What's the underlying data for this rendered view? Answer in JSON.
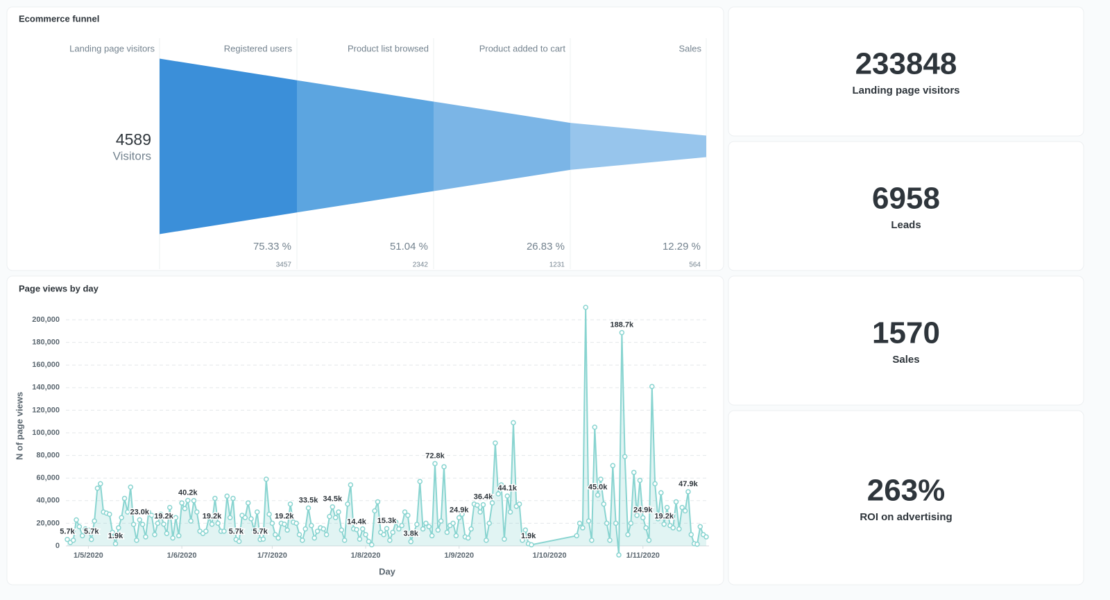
{
  "chart_data": [
    {
      "type": "funnel",
      "title": "Ecommerce funnel",
      "categories": [
        "Landing page visitors",
        "Registered users",
        "Product list browsed",
        "Product added to cart",
        "Sales"
      ],
      "values": [
        4589,
        3457,
        2342,
        1231,
        564
      ],
      "headline_label": "Visitors",
      "percent_labels": [
        "75.33 %",
        "51.04 %",
        "26.83 %",
        "12.29 %"
      ],
      "colors": [
        "#3b8fd9",
        "#5ca5e0",
        "#7bb5e6",
        "#97c5ec"
      ]
    },
    {
      "type": "line",
      "title": "Page views by day",
      "x_label": "Day",
      "y_label": "N of page views",
      "color": "#88d4d0",
      "grid": true,
      "x": [
        "24/4/2020",
        "25/4/2020",
        "26/4/2020",
        "27/4/2020",
        "28/4/2020",
        "29/4/2020",
        "30/4/2020",
        "1/5/2020",
        "2/5/2020",
        "3/5/2020",
        "4/5/2020",
        "5/5/2020",
        "6/5/2020",
        "7/5/2020",
        "8/5/2020",
        "9/5/2020",
        "10/5/2020",
        "11/5/2020",
        "12/5/2020",
        "13/5/2020",
        "14/5/2020",
        "15/5/2020",
        "16/5/2020",
        "17/5/2020",
        "18/5/2020",
        "19/5/2020",
        "20/5/2020",
        "21/5/2020",
        "22/5/2020",
        "23/5/2020",
        "24/5/2020",
        "25/5/2020",
        "26/5/2020",
        "27/5/2020",
        "28/5/2020",
        "29/5/2020",
        "30/5/2020",
        "31/5/2020",
        "1/6/2020",
        "2/6/2020",
        "3/6/2020",
        "4/6/2020",
        "5/6/2020",
        "6/6/2020",
        "7/6/2020",
        "8/6/2020",
        "9/6/2020",
        "10/6/2020",
        "11/6/2020",
        "12/6/2020",
        "13/6/2020",
        "14/6/2020",
        "15/6/2020",
        "16/6/2020",
        "17/6/2020",
        "18/6/2020",
        "19/6/2020",
        "20/6/2020",
        "21/6/2020",
        "22/6/2020",
        "23/6/2020",
        "24/6/2020",
        "25/6/2020",
        "26/6/2020",
        "27/6/2020",
        "28/6/2020",
        "29/6/2020",
        "30/6/2020",
        "1/7/2020",
        "2/7/2020",
        "3/7/2020",
        "4/7/2020",
        "5/7/2020",
        "6/7/2020",
        "7/7/2020",
        "8/7/2020",
        "9/7/2020",
        "10/7/2020",
        "11/7/2020",
        "12/7/2020",
        "13/7/2020",
        "14/7/2020",
        "15/7/2020",
        "16/7/2020",
        "17/7/2020",
        "18/7/2020",
        "19/7/2020",
        "20/7/2020",
        "21/7/2020",
        "22/7/2020",
        "23/7/2020",
        "24/7/2020",
        "25/7/2020",
        "26/7/2020",
        "27/7/2020",
        "28/7/2020",
        "29/7/2020",
        "30/7/2020",
        "31/7/2020",
        "1/8/2020",
        "2/8/2020",
        "3/8/2020",
        "4/8/2020",
        "5/8/2020",
        "6/8/2020",
        "7/8/2020",
        "8/8/2020",
        "9/8/2020",
        "10/8/2020",
        "11/8/2020",
        "12/8/2020",
        "13/8/2020",
        "14/8/2020",
        "15/8/2020",
        "16/8/2020",
        "17/8/2020",
        "18/8/2020",
        "19/8/2020",
        "20/8/2020",
        "21/8/2020",
        "22/8/2020",
        "23/8/2020",
        "24/8/2020",
        "25/8/2020",
        "26/8/2020",
        "27/8/2020",
        "28/8/2020",
        "29/8/2020",
        "30/8/2020",
        "31/8/2020",
        "1/9/2020",
        "2/9/2020",
        "3/9/2020",
        "4/9/2020",
        "5/9/2020",
        "6/9/2020",
        "7/9/2020",
        "8/9/2020",
        "9/9/2020",
        "10/9/2020",
        "11/9/2020",
        "12/9/2020",
        "13/9/2020",
        "14/9/2020",
        "15/9/2020",
        "16/9/2020",
        "17/9/2020",
        "18/9/2020",
        "19/9/2020",
        "20/9/2020",
        "21/9/2020",
        "22/9/2020",
        "23/9/2020",
        "24/9/2020",
        "25/9/2020",
        "10/10/2020",
        "11/10/2020",
        "12/10/2020",
        "13/10/2020",
        "14/10/2020",
        "15/10/2020",
        "16/10/2020",
        "17/10/2020",
        "18/10/2020",
        "19/10/2020",
        "20/10/2020",
        "21/10/2020",
        "22/10/2020",
        "23/10/2020",
        "24/10/2020",
        "25/10/2020",
        "26/10/2020",
        "27/10/2020",
        "28/10/2020",
        "29/10/2020",
        "30/10/2020",
        "31/10/2020",
        "1/11/2020",
        "2/11/2020",
        "3/11/2020",
        "4/11/2020",
        "5/11/2020",
        "6/11/2020",
        "7/11/2020",
        "8/11/2020",
        "9/11/2020",
        "10/11/2020",
        "11/11/2020",
        "12/11/2020",
        "13/11/2020",
        "14/11/2020",
        "15/11/2020",
        "16/11/2020",
        "17/11/2020",
        "18/11/2020",
        "19/11/2020",
        "20/11/2020",
        "21/11/2020",
        "22/11/2020"
      ],
      "values": [
        5700,
        3000,
        5000,
        23000,
        17000,
        9000,
        15000,
        14000,
        5700,
        22000,
        51000,
        55000,
        30000,
        29000,
        28000,
        12000,
        1900,
        16000,
        25000,
        42000,
        30000,
        52000,
        19000,
        5000,
        23000,
        19000,
        8000,
        30000,
        27000,
        10000,
        20000,
        28000,
        19200,
        11000,
        34000,
        7000,
        25000,
        9000,
        38000,
        33000,
        40200,
        22000,
        40000,
        30000,
        13000,
        11000,
        13000,
        25000,
        19200,
        42000,
        20000,
        13000,
        13000,
        44000,
        25000,
        42000,
        5700,
        4000,
        27000,
        25000,
        38000,
        24000,
        14000,
        30000,
        5700,
        6000,
        59000,
        28000,
        20000,
        10000,
        7000,
        20000,
        19200,
        14000,
        37000,
        21000,
        20000,
        10000,
        5000,
        15000,
        33500,
        18000,
        7000,
        13000,
        16000,
        15000,
        10000,
        26000,
        34500,
        25000,
        30000,
        14000,
        5000,
        37000,
        54000,
        15000,
        14400,
        6000,
        15000,
        10000,
        4000,
        1000,
        31000,
        39000,
        12000,
        10000,
        15300,
        5000,
        12000,
        21000,
        15000,
        18000,
        30000,
        27000,
        3800,
        12000,
        19000,
        57000,
        15000,
        20000,
        17000,
        9000,
        72800,
        14000,
        22000,
        70000,
        12000,
        18000,
        20000,
        9000,
        24900,
        28000,
        8000,
        7000,
        15000,
        37000,
        36000,
        30000,
        36400,
        5000,
        20000,
        38000,
        91000,
        46000,
        54000,
        6000,
        44100,
        30000,
        109000,
        35000,
        37000,
        5000,
        14000,
        1900,
        1000,
        9000,
        20000,
        16000,
        211000,
        22000,
        5000,
        105000,
        45000,
        59000,
        37000,
        20000,
        5000,
        71000,
        20000,
        -8000,
        188700,
        79000,
        10000,
        20000,
        65000,
        27000,
        58000,
        24900,
        16000,
        5000,
        141000,
        55000,
        24000,
        47000,
        19200,
        34000,
        18000,
        16000,
        39000,
        15000,
        34000,
        31000,
        47900,
        10000,
        2000,
        1500,
        17000,
        10000,
        8000
      ],
      "value_labels": [
        "5.7k",
        null,
        null,
        null,
        null,
        null,
        null,
        null,
        "5.7k",
        null,
        null,
        null,
        null,
        null,
        null,
        null,
        "1.9k",
        null,
        null,
        null,
        null,
        null,
        null,
        null,
        "23.0k",
        null,
        null,
        null,
        null,
        null,
        null,
        null,
        "19.2k",
        null,
        null,
        null,
        null,
        null,
        null,
        null,
        "40.2k",
        null,
        null,
        null,
        null,
        null,
        null,
        null,
        "19.2k",
        null,
        null,
        null,
        null,
        null,
        null,
        null,
        "5.7k",
        null,
        null,
        null,
        null,
        null,
        null,
        null,
        "5.7k",
        null,
        null,
        null,
        null,
        null,
        null,
        null,
        "19.2k",
        null,
        null,
        null,
        null,
        null,
        null,
        null,
        "33.5k",
        null,
        null,
        null,
        null,
        null,
        null,
        null,
        "34.5k",
        null,
        null,
        null,
        null,
        null,
        null,
        null,
        "14.4k",
        null,
        null,
        null,
        null,
        null,
        null,
        null,
        null,
        null,
        "15.3k",
        null,
        null,
        null,
        null,
        null,
        null,
        null,
        "3.8k",
        null,
        null,
        null,
        null,
        null,
        null,
        null,
        "72.8k",
        null,
        null,
        null,
        null,
        null,
        null,
        null,
        "24.9k",
        null,
        null,
        null,
        null,
        null,
        null,
        null,
        "36.4k",
        null,
        null,
        null,
        null,
        null,
        null,
        null,
        "44.1k",
        null,
        null,
        null,
        null,
        null,
        null,
        "1.9k",
        null,
        null,
        null,
        null,
        null,
        null,
        null,
        null,
        "45.0k",
        null,
        null,
        null,
        null,
        null,
        null,
        null,
        "188.7k",
        null,
        null,
        null,
        null,
        null,
        null,
        "24.9k",
        null,
        null,
        null,
        null,
        null,
        null,
        "19.2k",
        null,
        null,
        null,
        null,
        null,
        null,
        null,
        "47.9k",
        null,
        null,
        null,
        null,
        null,
        null
      ],
      "xlim": [
        "24/4/2020",
        "22/11/2020"
      ],
      "xticks": [
        "1/5/2020",
        "1/6/2020",
        "1/7/2020",
        "1/8/2020",
        "1/9/2020",
        "1/10/2020",
        "1/11/2020"
      ],
      "ylim": [
        0,
        212000
      ],
      "yticks": [
        0,
        {
          "value": 20000,
          "label": "20,000"
        },
        {
          "value": 40000,
          "label": "40,000"
        },
        {
          "value": 60000,
          "label": "60,000"
        },
        {
          "value": 80000,
          "label": "80,000"
        },
        {
          "value": 100000,
          "label": "100,000"
        },
        {
          "value": 120000,
          "label": "120,000"
        },
        {
          "value": 140000,
          "label": "140,000"
        },
        {
          "value": 160000,
          "label": "160,000"
        },
        {
          "value": 180000,
          "label": "180,000"
        },
        {
          "value": 200000,
          "label": "200,000"
        }
      ]
    }
  ],
  "cards": [
    {
      "value": 233848,
      "label": "Landing page visitors"
    },
    {
      "value": 6958,
      "label": "Leads"
    },
    {
      "value": 1570,
      "label": "Sales"
    },
    {
      "value": "263%",
      "label": "ROI on advertising"
    }
  ]
}
